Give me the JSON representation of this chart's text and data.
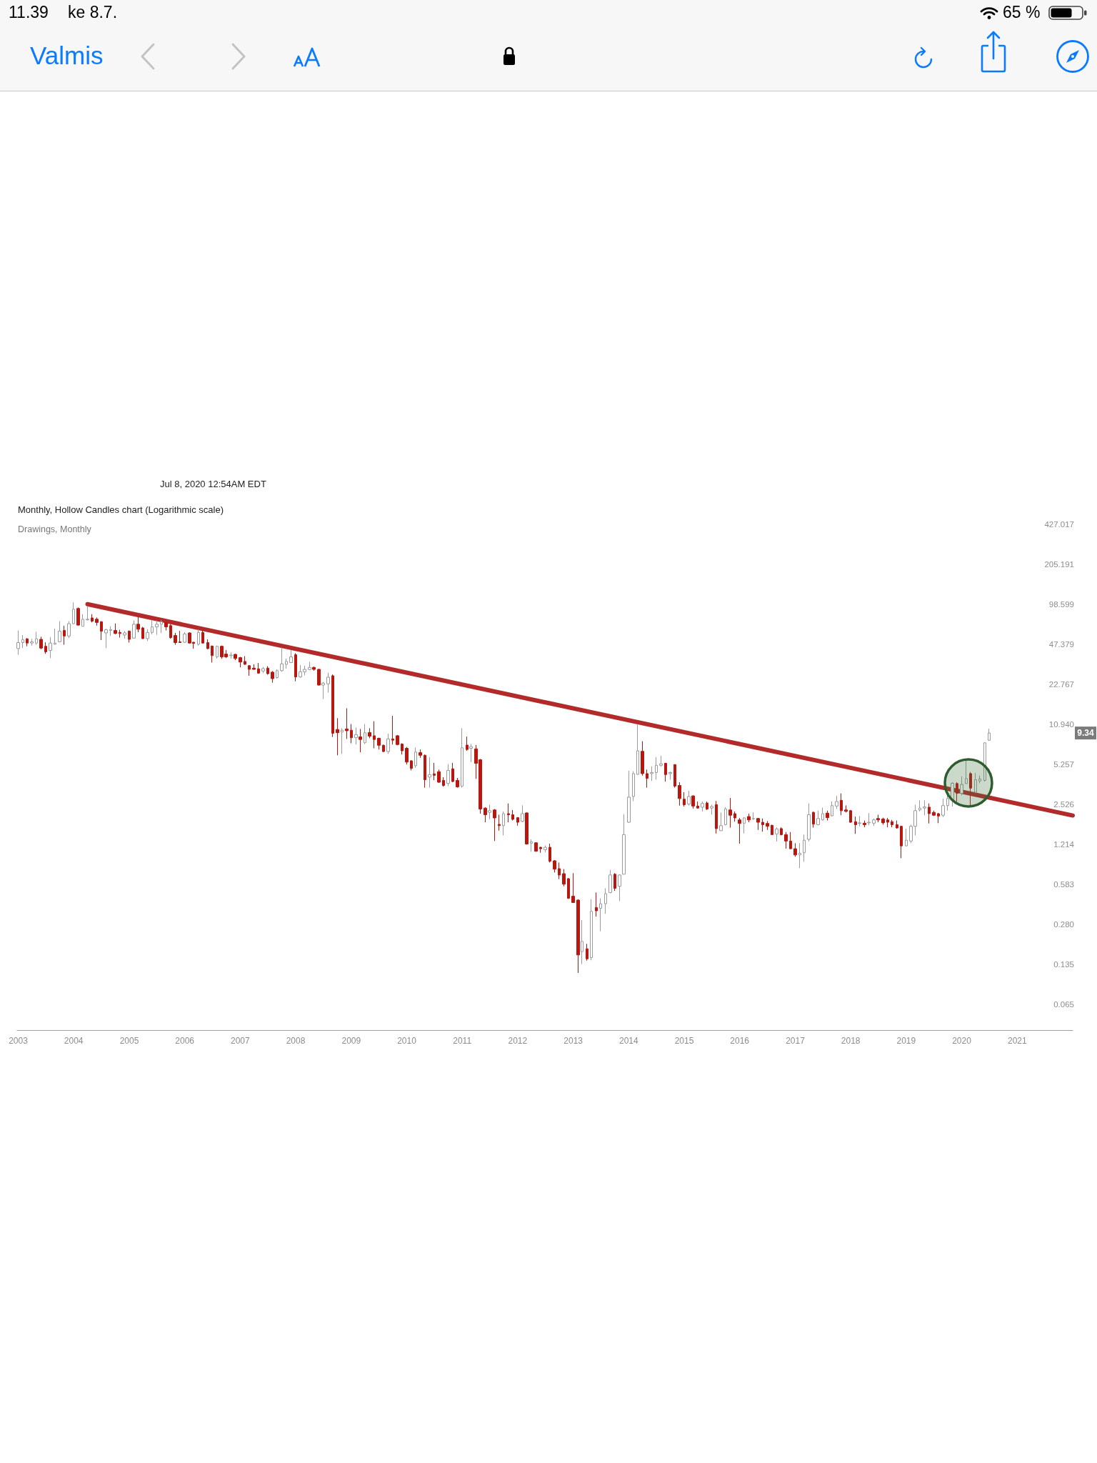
{
  "chart_data": {
    "type": "candlestick",
    "title": "Monthly, Hollow Candles chart (Logarithmic scale)",
    "subtitle": "Drawings, Monthly",
    "annotations": [
      "Jul 8, 2020 12:54AM EDT",
      {
        "text": "9.34",
        "y": 9.34
      },
      "11.39",
      "ke 8.7.",
      "65 %",
      "Valmis"
    ],
    "x": [
      "2003-01",
      "2003-02",
      "2003-03",
      "2003-04",
      "2003-05",
      "2003-06",
      "2003-07",
      "2003-08",
      "2003-09",
      "2003-10",
      "2003-11",
      "2003-12",
      "2004-01",
      "2004-02",
      "2004-03",
      "2004-04",
      "2004-05",
      "2004-06",
      "2004-07",
      "2004-08",
      "2004-09",
      "2004-10",
      "2004-11",
      "2004-12",
      "2005-01",
      "2005-02",
      "2005-03",
      "2005-04",
      "2005-05",
      "2005-06",
      "2005-07",
      "2005-08",
      "2005-09",
      "2005-10",
      "2005-11",
      "2005-12",
      "2006-01",
      "2006-02",
      "2006-03",
      "2006-04",
      "2006-05",
      "2006-06",
      "2006-07",
      "2006-08",
      "2006-09",
      "2006-10",
      "2006-11",
      "2006-12",
      "2007-01",
      "2007-02",
      "2007-03",
      "2007-04",
      "2007-05",
      "2007-06",
      "2007-07",
      "2007-08",
      "2007-09",
      "2007-10",
      "2007-11",
      "2007-12",
      "2008-01",
      "2008-02",
      "2008-03",
      "2008-04",
      "2008-05",
      "2008-06",
      "2008-07",
      "2008-08",
      "2008-09",
      "2008-10",
      "2008-11",
      "2008-12",
      "2009-01",
      "2009-02",
      "2009-03",
      "2009-04",
      "2009-05",
      "2009-06",
      "2009-07",
      "2009-08",
      "2009-09",
      "2009-10",
      "2009-11",
      "2009-12",
      "2010-01",
      "2010-02",
      "2010-03",
      "2010-04",
      "2010-05",
      "2010-06",
      "2010-07",
      "2010-08",
      "2010-09",
      "2010-10",
      "2010-11",
      "2010-12",
      "2011-01",
      "2011-02",
      "2011-03",
      "2011-04",
      "2011-05",
      "2011-06",
      "2011-07",
      "2011-08",
      "2011-09",
      "2011-10",
      "2011-11",
      "2011-12",
      "2012-01",
      "2012-02",
      "2012-03",
      "2012-04",
      "2012-05",
      "2012-06",
      "2012-07",
      "2012-08",
      "2012-09",
      "2012-10",
      "2012-11",
      "2012-12",
      "2013-01",
      "2013-02",
      "2013-03",
      "2013-04",
      "2013-05",
      "2013-06",
      "2013-07",
      "2013-08",
      "2013-09",
      "2013-10",
      "2013-11",
      "2013-12",
      "2014-01",
      "2014-02",
      "2014-03",
      "2014-04",
      "2014-05",
      "2014-06",
      "2014-07",
      "2014-08",
      "2014-09",
      "2014-10",
      "2014-11",
      "2014-12",
      "2015-01",
      "2015-02",
      "2015-03",
      "2015-04",
      "2015-05",
      "2015-06",
      "2015-07",
      "2015-08",
      "2015-09",
      "2015-10",
      "2015-11",
      "2015-12",
      "2016-01",
      "2016-02",
      "2016-03",
      "2016-04",
      "2016-05",
      "2016-06",
      "2016-07",
      "2016-08",
      "2016-09",
      "2016-10",
      "2016-11",
      "2016-12",
      "2017-01",
      "2017-02",
      "2017-03",
      "2017-04",
      "2017-05",
      "2017-06",
      "2017-07",
      "2017-08",
      "2017-09",
      "2017-10",
      "2017-11",
      "2017-12",
      "2018-01",
      "2018-02",
      "2018-03",
      "2018-04",
      "2018-05",
      "2018-06",
      "2018-07",
      "2018-08",
      "2018-09",
      "2018-10",
      "2018-11",
      "2018-12",
      "2019-01",
      "2019-02",
      "2019-03",
      "2019-04",
      "2019-05",
      "2019-06",
      "2019-07",
      "2019-08",
      "2019-09",
      "2019-10",
      "2019-11",
      "2019-12",
      "2020-01",
      "2020-02",
      "2020-03",
      "2020-04",
      "2020-05",
      "2020-06",
      "2020-07"
    ],
    "ohlc": [
      [
        43.9,
        61.2,
        39.2,
        49.0
      ],
      [
        49.0,
        56.3,
        44.3,
        51.8
      ],
      [
        52.5,
        53.2,
        45.8,
        48.6
      ],
      [
        48.6,
        52.5,
        46.4,
        49.7
      ],
      [
        48.6,
        59.8,
        47.1,
        52.5
      ],
      [
        52.0,
        54.5,
        43.4,
        44.3
      ],
      [
        45.8,
        49.3,
        39.9,
        41.4
      ],
      [
        42.4,
        54.2,
        36.9,
        48.6
      ],
      [
        47.5,
        63.2,
        47.1,
        48.6
      ],
      [
        49.7,
        72.6,
        49.3,
        60.4
      ],
      [
        61.2,
        66.6,
        47.1,
        55.3
      ],
      [
        55.3,
        72.6,
        53.2,
        69.3
      ],
      [
        69.3,
        102.4,
        68.6,
        90.4
      ],
      [
        91.6,
        93.3,
        66.9,
        67.5
      ],
      [
        66.0,
        82.5,
        66.0,
        75.2
      ],
      [
        74.3,
        95.9,
        73.5,
        75.2
      ],
      [
        77.0,
        82.5,
        70.9,
        72.6
      ],
      [
        75.2,
        77.7,
        66.9,
        70.9
      ],
      [
        71.8,
        72.6,
        51.3,
        60.4
      ],
      [
        58.5,
        63.2,
        44.3,
        62.0
      ],
      [
        61.2,
        66.0,
        55.3,
        62.3
      ],
      [
        61.2,
        69.6,
        57.1,
        57.9
      ],
      [
        59.0,
        62.0,
        53.7,
        57.9
      ],
      [
        56.3,
        60.4,
        52.7,
        58.5
      ],
      [
        60.4,
        61.2,
        49.0,
        52.0
      ],
      [
        53.2,
        73.5,
        52.7,
        68.6
      ],
      [
        68.6,
        78.8,
        59.2,
        62.6
      ],
      [
        64.1,
        65.4,
        52.5,
        52.7
      ],
      [
        52.7,
        62.6,
        50.4,
        59.0
      ],
      [
        59.0,
        74.3,
        57.1,
        65.4
      ],
      [
        65.4,
        73.5,
        56.5,
        68.6
      ],
      [
        68.6,
        74.3,
        58.5,
        71.8
      ],
      [
        70.3,
        71.8,
        61.2,
        65.4
      ],
      [
        66.9,
        68.6,
        52.7,
        53.7
      ],
      [
        55.8,
        58.5,
        47.1,
        49.0
      ],
      [
        49.7,
        60.7,
        48.8,
        49.0
      ],
      [
        49.3,
        59.2,
        48.6,
        57.4
      ],
      [
        58.5,
        59.2,
        48.2,
        48.6
      ],
      [
        49.3,
        49.7,
        43.9,
        48.2
      ],
      [
        47.5,
        62.6,
        46.4,
        59.0
      ],
      [
        59.0,
        61.2,
        48.2,
        48.6
      ],
      [
        49.0,
        52.0,
        43.4,
        43.9
      ],
      [
        46.0,
        46.4,
        34.0,
        38.6
      ],
      [
        37.7,
        46.4,
        36.6,
        45.8
      ],
      [
        45.8,
        46.4,
        36.4,
        37.7
      ],
      [
        39.7,
        42.8,
        36.9,
        37.7
      ],
      [
        38.6,
        41.0,
        36.6,
        39.0
      ],
      [
        39.5,
        39.9,
        35.5,
        36.6
      ],
      [
        37.2,
        37.7,
        31.1,
        34.3
      ],
      [
        34.7,
        38.2,
        32.6,
        32.9
      ],
      [
        32.1,
        32.4,
        26.7,
        30.0
      ],
      [
        30.7,
        32.9,
        29.8,
        30.0
      ],
      [
        30.3,
        33.7,
        27.7,
        28.0
      ],
      [
        29.1,
        31.4,
        28.0,
        30.4
      ],
      [
        30.7,
        31.8,
        27.2,
        27.7
      ],
      [
        28.5,
        29.1,
        23.5,
        25.3
      ],
      [
        25.8,
        30.0,
        25.3,
        29.3
      ],
      [
        29.3,
        44.7,
        28.7,
        33.2
      ],
      [
        32.9,
        36.6,
        30.4,
        34.7
      ],
      [
        34.0,
        42.8,
        33.7,
        37.7
      ],
      [
        39.2,
        40.3,
        24.1,
        26.1
      ],
      [
        26.1,
        32.4,
        25.8,
        28.7
      ],
      [
        28.7,
        32.1,
        26.9,
        30.0
      ],
      [
        29.9,
        34.5,
        29.6,
        31.1
      ],
      [
        31.1,
        31.6,
        29.3,
        30.0
      ],
      [
        30.0,
        30.3,
        22.3,
        22.5
      ],
      [
        22.5,
        23.8,
        17.4,
        23.3
      ],
      [
        23.0,
        28.2,
        19.6,
        26.0
      ],
      [
        26.7,
        27.3,
        8.68,
        9.3
      ],
      [
        9.97,
        12.26,
        6.21,
        9.39
      ],
      [
        9.52,
        10.2,
        6.38,
        9.83
      ],
      [
        10.06,
        14.7,
        8.38,
        9.74
      ],
      [
        9.83,
        11.0,
        7.74,
        8.57
      ],
      [
        8.57,
        10.34,
        7.56,
        9.07
      ],
      [
        8.71,
        10.06,
        6.56,
        8.3
      ],
      [
        7.81,
        11.0,
        7.63,
        9.39
      ],
      [
        9.43,
        10.2,
        8.49,
        8.81
      ],
      [
        8.89,
        11.6,
        7.06,
        8.3
      ],
      [
        8.49,
        8.57,
        6.91,
        7.46
      ],
      [
        7.46,
        7.56,
        6.59,
        6.65
      ],
      [
        6.65,
        9.22,
        6.38,
        8.38
      ],
      [
        8.38,
        12.8,
        7.56,
        8.19
      ],
      [
        8.89,
        9.01,
        7.46,
        7.56
      ],
      [
        7.63,
        7.74,
        6.3,
        6.74
      ],
      [
        7.06,
        7.23,
        5.24,
        5.48
      ],
      [
        5.61,
        5.69,
        4.71,
        4.89
      ],
      [
        5.13,
        7.16,
        4.94,
        6.59
      ],
      [
        6.52,
        6.91,
        5.93,
        6.21
      ],
      [
        6.21,
        6.3,
        3.43,
        3.97
      ],
      [
        4.16,
        6.01,
        3.43,
        4.36
      ],
      [
        4.42,
        5.41,
        3.93,
        4.3
      ],
      [
        4.6,
        4.78,
        3.74,
        3.79
      ],
      [
        3.92,
        4.16,
        3.5,
        3.57
      ],
      [
        3.71,
        5.29,
        3.53,
        4.71
      ],
      [
        4.85,
        5.41,
        3.79,
        3.84
      ],
      [
        3.92,
        4.1,
        3.43,
        3.48
      ],
      [
        3.53,
        10.2,
        3.43,
        7.13
      ],
      [
        7.49,
        8.75,
        6.74,
        6.91
      ],
      [
        7.06,
        7.63,
        5.48,
        7.28
      ],
      [
        6.98,
        7.49,
        4.03,
        5.36
      ],
      [
        5.72,
        5.8,
        2.13,
        2.32
      ],
      [
        2.36,
        2.4,
        1.82,
        2.09
      ],
      [
        2.18,
        2.51,
        1.92,
        2.25
      ],
      [
        2.28,
        2.32,
        1.29,
        1.97
      ],
      [
        1.75,
        2.09,
        1.56,
        1.71
      ],
      [
        1.71,
        2.22,
        1.43,
        2.13
      ],
      [
        2.13,
        2.57,
        1.82,
        2.09
      ],
      [
        2.09,
        2.28,
        1.88,
        1.92
      ],
      [
        1.98,
        2.0,
        1.71,
        1.82
      ],
      [
        1.85,
        2.48,
        1.82,
        2.13
      ],
      [
        2.16,
        2.18,
        1.21,
        1.22
      ],
      [
        1.24,
        1.33,
        1.06,
        1.27
      ],
      [
        1.25,
        1.26,
        1.06,
        1.07
      ],
      [
        1.15,
        1.16,
        1.04,
        1.12
      ],
      [
        1.1,
        1.19,
        1.05,
        1.15
      ],
      [
        1.15,
        1.23,
        0.87,
        0.89
      ],
      [
        0.898,
        0.91,
        0.725,
        0.771
      ],
      [
        0.778,
        0.87,
        0.641,
        0.692
      ],
      [
        0.709,
        0.771,
        0.563,
        0.585
      ],
      [
        0.647,
        0.656,
        0.447,
        0.452
      ],
      [
        0.469,
        0.716,
        0.414,
        0.418
      ],
      [
        0.437,
        0.444,
        0.115,
        0.16
      ],
      [
        0.17,
        0.303,
        0.135,
        0.205
      ],
      [
        0.179,
        0.196,
        0.144,
        0.149
      ],
      [
        0.152,
        0.444,
        0.145,
        0.356
      ],
      [
        0.381,
        0.502,
        0.323,
        0.359
      ],
      [
        0.376,
        0.452,
        0.247,
        0.409
      ],
      [
        0.409,
        0.542,
        0.34,
        0.491
      ],
      [
        0.502,
        0.76,
        0.495,
        0.692
      ],
      [
        0.702,
        0.716,
        0.518,
        0.542
      ],
      [
        0.563,
        0.7,
        0.428,
        0.692
      ],
      [
        0.702,
        2.11,
        0.7,
        1.45
      ],
      [
        1.82,
        4.67,
        1.8,
        2.88
      ],
      [
        2.92,
        4.63,
        2.69,
        4.44
      ],
      [
        4.38,
        10.9,
        4.34,
        6.74
      ],
      [
        6.68,
        8.03,
        4.28,
        4.44
      ],
      [
        4.44,
        4.78,
        3.43,
        4.07
      ],
      [
        4.44,
        5.07,
        3.88,
        4.53
      ],
      [
        4.53,
        6.01,
        3.97,
        5.17
      ],
      [
        5.17,
        6.15,
        5.03,
        5.32
      ],
      [
        5.36,
        5.41,
        3.84,
        4.36
      ],
      [
        4.44,
        4.6,
        3.97,
        4.53
      ],
      [
        5.24,
        5.24,
        3.43,
        3.53
      ],
      [
        3.57,
        3.79,
        2.47,
        2.81
      ],
      [
        2.78,
        3.16,
        2.43,
        2.51
      ],
      [
        2.54,
        3.24,
        2.47,
        2.92
      ],
      [
        2.95,
        2.98,
        2.34,
        2.45
      ],
      [
        2.45,
        2.66,
        2.34,
        2.36
      ],
      [
        2.4,
        2.66,
        2.22,
        2.57
      ],
      [
        2.59,
        2.66,
        2.28,
        2.32
      ],
      [
        2.36,
        2.51,
        2.09,
        2.43
      ],
      [
        2.51,
        2.69,
        1.48,
        1.62
      ],
      [
        1.56,
        2.18,
        1.55,
        1.71
      ],
      [
        1.74,
        2.4,
        1.72,
        2.32
      ],
      [
        2.28,
        2.84,
        1.65,
        2.07
      ],
      [
        2.13,
        2.22,
        1.84,
        1.97
      ],
      [
        1.9,
        1.97,
        1.23,
        1.78
      ],
      [
        1.79,
        2.0,
        1.48,
        1.97
      ],
      [
        2.02,
        2.13,
        1.82,
        1.9
      ],
      [
        1.94,
        2.18,
        1.9,
        1.95
      ],
      [
        1.95,
        1.97,
        1.58,
        1.82
      ],
      [
        1.82,
        1.95,
        1.53,
        1.74
      ],
      [
        1.78,
        1.86,
        1.58,
        1.69
      ],
      [
        1.72,
        1.74,
        1.45,
        1.45
      ],
      [
        1.47,
        1.66,
        1.28,
        1.61
      ],
      [
        1.62,
        1.66,
        1.43,
        1.45
      ],
      [
        1.45,
        1.52,
        1.12,
        1.29
      ],
      [
        1.29,
        1.52,
        1.11,
        1.12
      ],
      [
        1.12,
        1.24,
        0.967,
        1.0
      ],
      [
        1.0,
        1.24,
        0.785,
        1.03
      ],
      [
        1.04,
        1.45,
        0.882,
        1.31
      ],
      [
        1.33,
        2.57,
        1.28,
        2.09
      ],
      [
        2.18,
        2.22,
        1.65,
        1.76
      ],
      [
        1.74,
        2.25,
        1.72,
        1.95
      ],
      [
        1.9,
        2.38,
        1.88,
        2.13
      ],
      [
        2.15,
        2.25,
        1.88,
        1.98
      ],
      [
        2.05,
        2.66,
        2.02,
        2.47
      ],
      [
        2.45,
        2.95,
        2.32,
        2.66
      ],
      [
        2.72,
        3.09,
        2.07,
        2.25
      ],
      [
        2.28,
        2.48,
        2.18,
        2.22
      ],
      [
        2.25,
        2.28,
        1.8,
        1.82
      ],
      [
        1.84,
        2.02,
        1.47,
        1.74
      ],
      [
        1.78,
        2.04,
        1.69,
        1.8
      ],
      [
        1.79,
        1.88,
        1.66,
        1.74
      ],
      [
        1.8,
        2.15,
        1.72,
        1.82
      ],
      [
        1.79,
        1.95,
        1.7,
        1.9
      ],
      [
        1.95,
        2.09,
        1.82,
        1.9
      ],
      [
        1.93,
        1.98,
        1.74,
        1.8
      ],
      [
        1.9,
        1.97,
        1.66,
        1.82
      ],
      [
        1.84,
        1.9,
        1.66,
        1.74
      ],
      [
        1.74,
        1.88,
        1.62,
        1.64
      ],
      [
        1.69,
        1.71,
        0.942,
        1.18
      ],
      [
        1.18,
        1.62,
        1.17,
        1.31
      ],
      [
        1.29,
        1.74,
        1.24,
        1.69
      ],
      [
        1.69,
        2.51,
        1.43,
        2.25
      ],
      [
        2.28,
        2.72,
        2.22,
        2.36
      ],
      [
        2.36,
        2.72,
        2.07,
        2.41
      ],
      [
        2.4,
        2.57,
        1.78,
        2.13
      ],
      [
        2.18,
        2.25,
        2.04,
        2.07
      ],
      [
        2.13,
        2.16,
        1.79,
        2.04
      ],
      [
        2.07,
        2.81,
        2.0,
        2.47
      ],
      [
        2.47,
        3.09,
        2.25,
        2.81
      ],
      [
        2.75,
        3.79,
        2.43,
        3.72
      ],
      [
        3.7,
        3.79,
        2.66,
        3.09
      ],
      [
        3.09,
        4.22,
        2.98,
        3.64
      ],
      [
        3.7,
        5.8,
        3.7,
        4.05
      ],
      [
        4.44,
        4.57,
        2.45,
        3.4
      ],
      [
        3.16,
        4.5,
        3.09,
        3.97
      ],
      [
        3.88,
        4.29,
        3.72,
        4.03
      ],
      [
        3.92,
        7.85,
        3.84,
        7.81
      ],
      [
        8.18,
        10.1,
        8.1,
        9.34
      ]
    ],
    "series": [
      {
        "type": "line",
        "x": [
          "2004-04",
          "2022-01"
        ],
        "values": [
          99.1,
          2.06
        ],
        "color": "#b22a2a"
      }
    ],
    "xlim": [
      "2002-12-25",
      "2022-01"
    ],
    "xticks": [
      "2003",
      "2004",
      "2005",
      "2006",
      "2007",
      "2008",
      "2009",
      "2010",
      "2011",
      "2012",
      "2013",
      "2014",
      "2015",
      "2016",
      "2017",
      "2018",
      "2019",
      "2020",
      "2021"
    ],
    "ylim": [
      0.04,
      427.017
    ],
    "yticks": [
      0.065,
      0.135,
      {
        "value": 0.28,
        "label": "0.280"
      },
      0.583,
      1.214,
      2.526,
      5.257,
      {
        "value": 10.94,
        "label": "10.940"
      },
      22.767,
      47.379,
      98.599,
      205.191,
      427.017
    ],
    "log": true
  }
}
